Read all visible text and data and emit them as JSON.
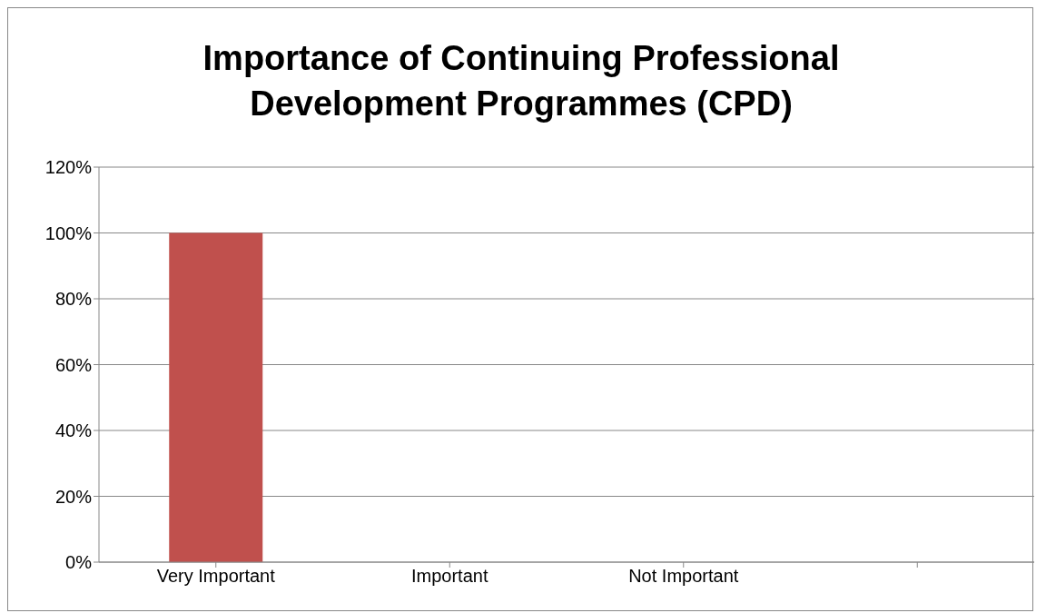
{
  "chart_data": {
    "type": "bar",
    "title": "Importance of Continuing Professional Development Programmes (CPD)",
    "categories": [
      "Very Important",
      "Important",
      "Not Important",
      null
    ],
    "values": [
      100,
      0,
      0,
      null
    ],
    "color": "#c0504d",
    "ylim": [
      0,
      120
    ],
    "yticks": [
      {
        "value": 0,
        "label": "0%"
      },
      {
        "value": 20,
        "label": "20%"
      },
      {
        "value": 40,
        "label": "40%"
      },
      {
        "value": 60,
        "label": "60%"
      },
      {
        "value": 80,
        "label": "80%"
      },
      {
        "value": 100,
        "label": "100%"
      },
      {
        "value": 120,
        "label": "120%"
      }
    ],
    "grid": "y",
    "legend": false
  }
}
